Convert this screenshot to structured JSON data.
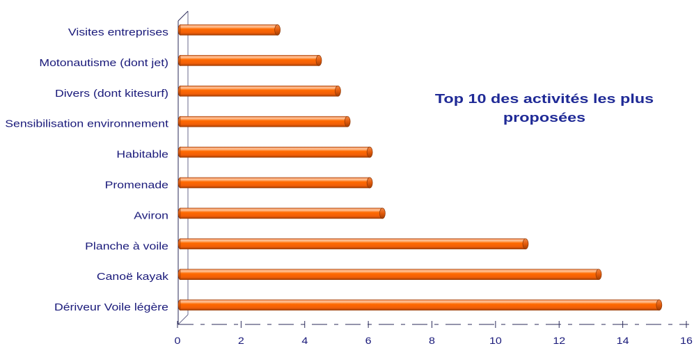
{
  "chart_data": {
    "type": "bar",
    "orientation": "horizontal",
    "three_d": true,
    "title": "Top 10 des activités les plus proposées",
    "categories": [
      "Visites entreprises",
      "Motonautisme (dont jet)",
      "Divers (dont kitesurf)",
      "Sensibilisation environnement",
      "Habitable",
      "Promenade",
      "Aviron",
      "Planche à voile",
      "Canoë kayak",
      "Dériveur Voile légère"
    ],
    "values": [
      3.1,
      4.4,
      5.0,
      5.3,
      6.0,
      6.0,
      6.4,
      10.9,
      13.2,
      15.1
    ],
    "xlim": [
      0,
      16
    ],
    "xticks": [
      "0",
      "2",
      "4",
      "6",
      "8",
      "10",
      "12",
      "14",
      "16"
    ],
    "grid": false,
    "legend": "none",
    "colors": {
      "bar": "#FF6A00",
      "text": "#1A1A7A",
      "title": "#1F2A96"
    }
  }
}
